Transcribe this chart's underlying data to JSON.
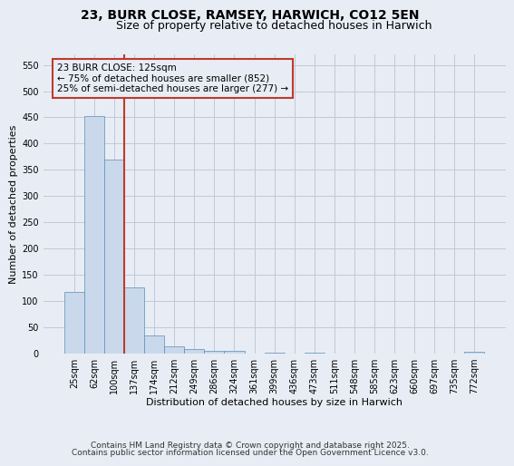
{
  "title1": "23, BURR CLOSE, RAMSEY, HARWICH, CO12 5EN",
  "title2": "Size of property relative to detached houses in Harwich",
  "xlabel": "Distribution of detached houses by size in Harwich",
  "ylabel": "Number of detached properties",
  "categories": [
    "25sqm",
    "62sqm",
    "100sqm",
    "137sqm",
    "174sqm",
    "212sqm",
    "249sqm",
    "286sqm",
    "324sqm",
    "361sqm",
    "399sqm",
    "436sqm",
    "473sqm",
    "511sqm",
    "548sqm",
    "585sqm",
    "623sqm",
    "660sqm",
    "697sqm",
    "735sqm",
    "772sqm"
  ],
  "values": [
    118,
    453,
    370,
    126,
    34,
    13,
    8,
    5,
    5,
    0,
    1,
    0,
    1,
    0,
    0,
    0,
    0,
    0,
    0,
    0,
    3
  ],
  "bar_color": "#c9d9eb",
  "bar_edge_color": "#5b8db8",
  "bar_edge_width": 0.5,
  "grid_color": "#c0c8d8",
  "bg_color": "#e8edf5",
  "vline_color": "#c0392b",
  "annotation_text": "23 BURR CLOSE: 125sqm\n← 75% of detached houses are smaller (852)\n25% of semi-detached houses are larger (277) →",
  "annotation_box_color": "#c0392b",
  "ylim": [
    0,
    570
  ],
  "yticks": [
    0,
    50,
    100,
    150,
    200,
    250,
    300,
    350,
    400,
    450,
    500,
    550
  ],
  "footer1": "Contains HM Land Registry data © Crown copyright and database right 2025.",
  "footer2": "Contains public sector information licensed under the Open Government Licence v3.0.",
  "title_fontsize": 10,
  "subtitle_fontsize": 9,
  "axis_label_fontsize": 8,
  "tick_fontsize": 7,
  "footer_fontsize": 6.5,
  "annotation_fontsize": 7.5
}
